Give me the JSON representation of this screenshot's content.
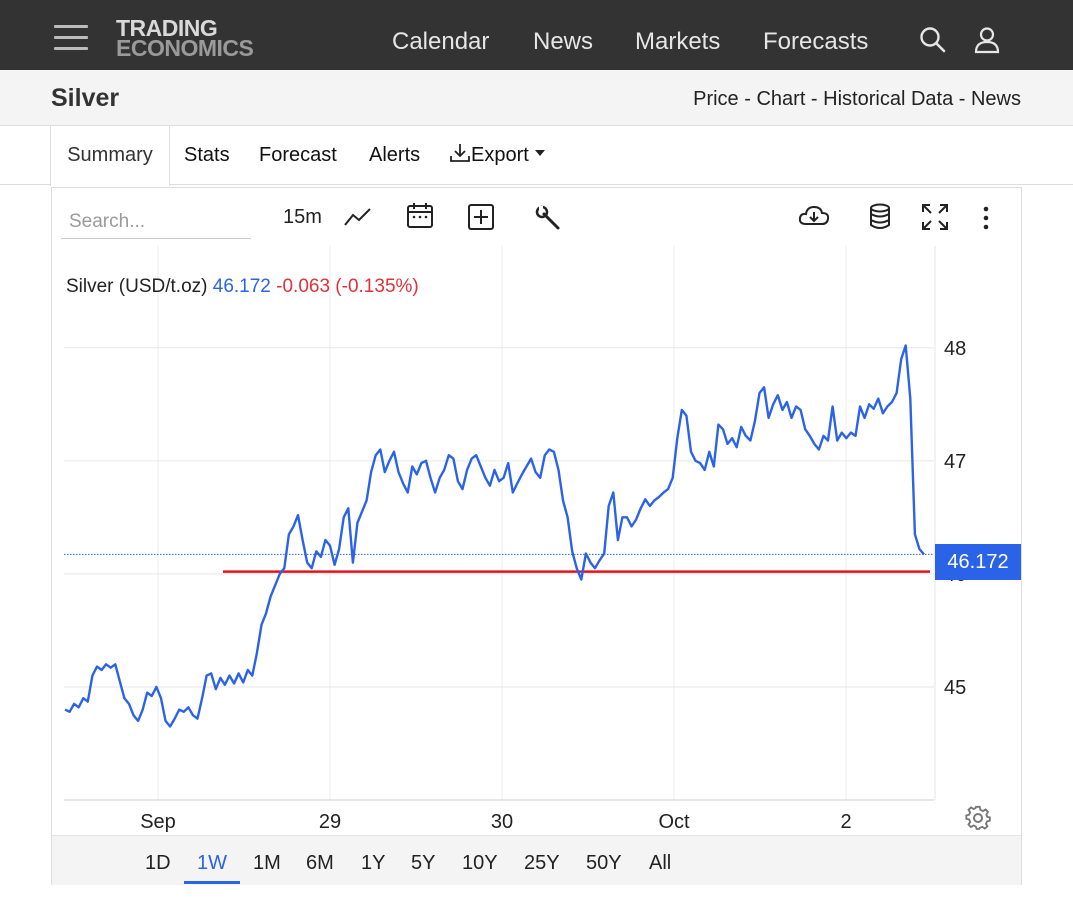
{
  "nav": {
    "logo_line1": "TRADING",
    "logo_line2": "ECONOMICS",
    "links": [
      "Calendar",
      "News",
      "Markets",
      "Forecasts"
    ],
    "icons": [
      "menu-icon",
      "search-icon",
      "user-icon"
    ]
  },
  "header": {
    "title": "Silver",
    "breadcrumbs": [
      "Price",
      "Chart",
      "Historical Data",
      "News"
    ],
    "separator": " - "
  },
  "tabs": {
    "items": [
      "Summary",
      "Stats",
      "Forecast",
      "Alerts",
      "Export"
    ],
    "active": "Summary"
  },
  "toolbar": {
    "search_placeholder": "Search...",
    "interval": "15m",
    "icons": [
      "line-chart-icon",
      "calendar-icon",
      "compare-plus-icon",
      "wrench-icon",
      "cloud-download-icon",
      "database-icon",
      "fullscreen-icon",
      "more-vert-icon"
    ]
  },
  "legend": {
    "name": "Silver (USD/t.oz)",
    "last": "46.172",
    "change": "-0.063 (-0.135%)"
  },
  "price_tag": "46.172",
  "ranges": [
    "1D",
    "1W",
    "1M",
    "6M",
    "1Y",
    "5Y",
    "10Y",
    "25Y",
    "50Y",
    "All"
  ],
  "active_range": "1W",
  "colors": {
    "line": "#2b63e8",
    "support_line": "#e8121c",
    "price_tag": "#2b63e8",
    "change_negative": "#e0313b"
  },
  "chart_data": {
    "type": "line",
    "title": "",
    "xlabel": "",
    "ylabel": "",
    "x_tick_labels": [
      "Sep",
      "29",
      "30",
      "Oct",
      "2"
    ],
    "y_tick_labels": [
      "45",
      "46",
      "47",
      "48"
    ],
    "ylim": [
      44.0,
      48.9
    ],
    "last_value": 46.172,
    "support_level": 46.02,
    "series": [
      {
        "values": [
          44.8,
          44.78,
          44.85,
          44.82,
          44.9,
          44.87,
          45.1,
          45.18,
          45.15,
          45.2,
          45.17,
          45.2,
          45.05,
          44.9,
          44.85,
          44.75,
          44.7,
          44.8,
          44.95,
          44.92,
          45.0,
          44.9,
          44.7,
          44.65,
          44.72,
          44.8,
          44.78,
          44.82,
          44.75,
          44.72,
          44.9,
          45.1,
          45.12,
          44.98,
          45.08,
          45.02,
          45.1,
          45.03,
          45.12,
          45.04,
          45.15,
          45.1,
          45.3,
          45.55,
          45.65,
          45.8,
          45.9,
          46.0,
          46.05,
          46.35,
          46.42,
          46.52,
          46.3,
          46.1,
          46.05,
          46.2,
          46.15,
          46.3,
          46.25,
          46.08,
          46.22,
          46.5,
          46.58,
          46.1,
          46.45,
          46.55,
          46.65,
          46.9,
          47.05,
          47.1,
          46.9,
          47.0,
          47.08,
          46.9,
          46.8,
          46.72,
          46.95,
          46.88,
          46.98,
          47.0,
          46.85,
          46.72,
          46.85,
          46.92,
          47.05,
          47.02,
          46.82,
          46.75,
          46.92,
          47.02,
          47.05,
          46.95,
          46.85,
          46.78,
          46.92,
          46.82,
          46.85,
          46.98,
          46.72,
          46.8,
          46.88,
          46.95,
          47.02,
          46.9,
          46.85,
          47.05,
          47.1,
          47.08,
          46.92,
          46.65,
          46.5,
          46.2,
          46.05,
          45.95,
          46.18,
          46.1,
          46.05,
          46.12,
          46.18,
          46.6,
          46.72,
          46.3,
          46.5,
          46.5,
          46.42,
          46.48,
          46.58,
          46.66,
          46.6,
          46.65,
          46.68,
          46.72,
          46.75,
          46.85,
          47.2,
          47.45,
          47.4,
          47.08,
          47.0,
          46.98,
          46.92,
          47.08,
          46.95,
          47.32,
          47.28,
          47.15,
          47.2,
          47.12,
          47.3,
          47.22,
          47.18,
          47.35,
          47.6,
          47.65,
          47.38,
          47.5,
          47.58,
          47.45,
          47.52,
          47.38,
          47.48,
          47.45,
          47.28,
          47.22,
          47.15,
          47.1,
          47.22,
          47.18,
          47.48,
          47.18,
          47.25,
          47.2,
          47.25,
          47.22,
          47.48,
          47.38,
          47.5,
          47.46,
          47.55,
          47.42,
          47.48,
          47.52,
          47.6,
          47.9,
          48.02,
          47.55,
          46.35,
          46.22,
          46.172
        ]
      }
    ]
  }
}
